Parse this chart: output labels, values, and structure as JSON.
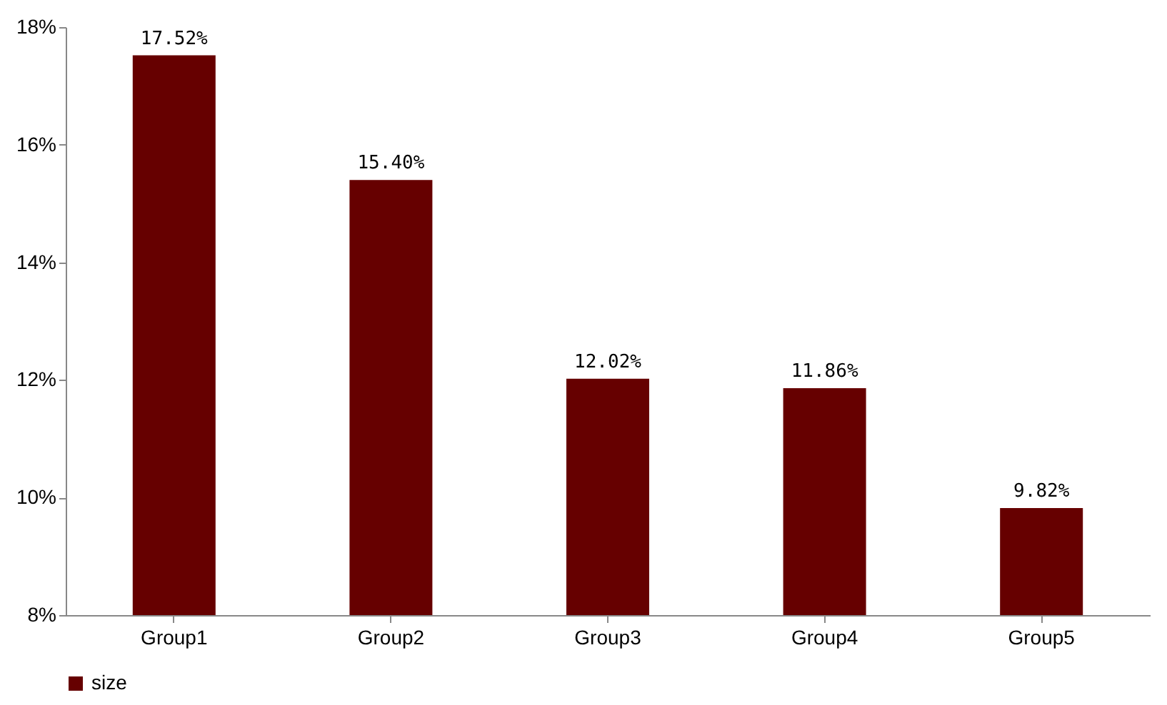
{
  "chart_data": {
    "type": "bar",
    "categories": [
      "Group1",
      "Group2",
      "Group3",
      "Group4",
      "Group5"
    ],
    "series": [
      {
        "name": "size",
        "color": "#660000",
        "values": [
          17.52,
          15.4,
          12.02,
          11.86,
          9.82
        ],
        "value_labels": [
          "17.52%",
          "15.40%",
          "12.02%",
          "11.86%",
          "9.82%"
        ]
      }
    ],
    "ylim": [
      8,
      18
    ],
    "yticks": [
      {
        "value": 8,
        "label": "8%"
      },
      {
        "value": 10,
        "label": "10%"
      },
      {
        "value": 12,
        "label": "12%"
      },
      {
        "value": 14,
        "label": "14%"
      },
      {
        "value": 16,
        "label": "16%"
      },
      {
        "value": 18,
        "label": "18%"
      }
    ],
    "grid": false,
    "legend": "bottom"
  }
}
